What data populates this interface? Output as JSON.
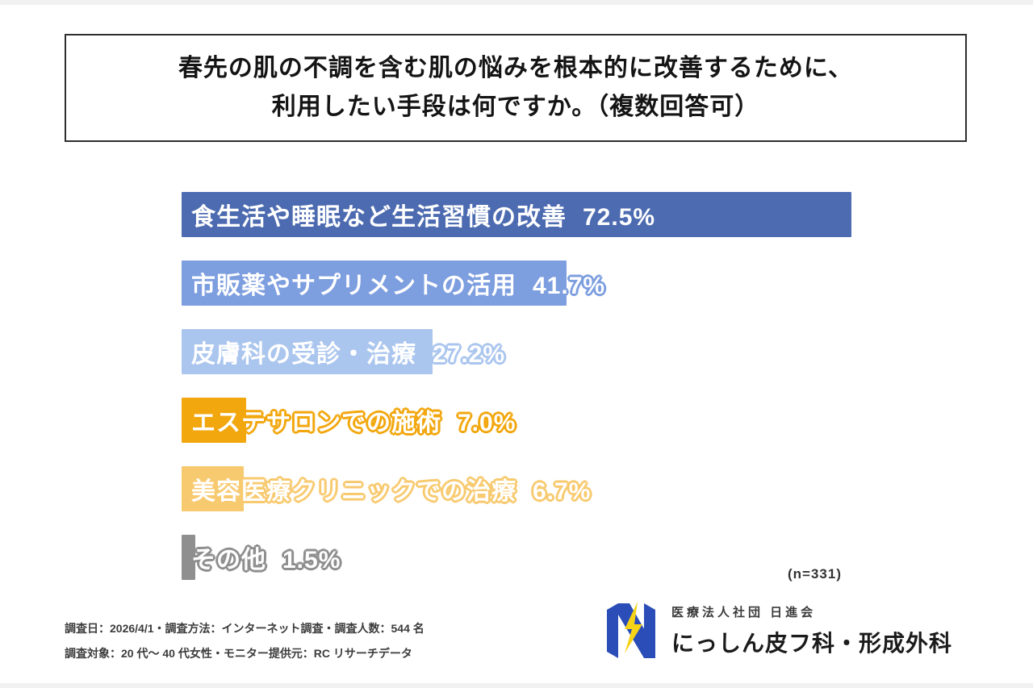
{
  "title": {
    "line1": "春先の肌の不調を含む肌の悩みを根本的に改善するために、",
    "line2": "利用したい手段は何ですか。（複数回答可）"
  },
  "chart_data": {
    "type": "bar",
    "orientation": "horizontal",
    "title": "春先の肌の不調を含む肌の悩みを根本的に改善するために、利用したい手段は何ですか。（複数回答可）",
    "categories": [
      "食生活や睡眠など生活習慣の改善",
      "市販薬やサプリメントの活用",
      "皮膚科の受診・治療",
      "エステサロンでの施術",
      "美容医療クリニックでの治療",
      "その他"
    ],
    "values": [
      72.5,
      41.7,
      27.2,
      7.0,
      6.7,
      1.5
    ],
    "value_labels": [
      "72.5%",
      "41.7%",
      "27.2%",
      "7.0%",
      "6.7%",
      "1.5%"
    ],
    "bar_colors": [
      "#4d6bb0",
      "#7d9edf",
      "#abc6ee",
      "#f2a70e",
      "#f8ca70",
      "#8f8f8f"
    ],
    "xlim": [
      0,
      100
    ],
    "grid": false,
    "legend": false,
    "sample_size_note": "(n=331)"
  },
  "footer": {
    "survey_note_line1": "調査日：2026/4/1・調査方法：インターネット調査・調査人数：544 名",
    "survey_note_line2": "調査対象：20 代～ 40 代女性・モニター提供元：RC リサーチデータ",
    "clinic_group": "医療法人社団 日進会",
    "clinic_name": "にっしん皮フ科・形成外科",
    "logo": {
      "blue": "#2b4db8",
      "yellow": "#f6d316"
    }
  }
}
